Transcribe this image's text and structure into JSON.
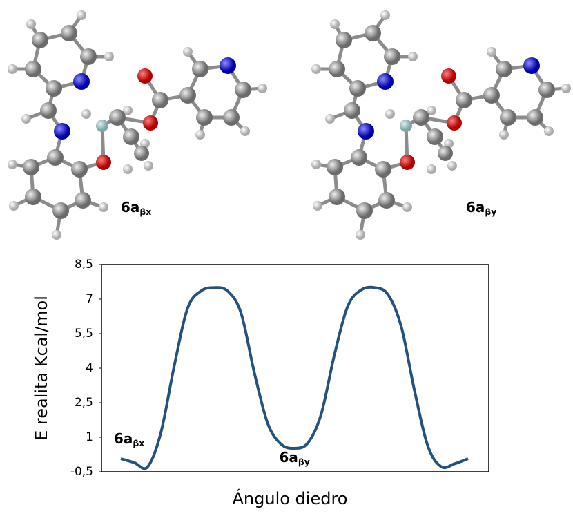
{
  "molecule_labels": [
    {
      "text": "6a",
      "sub": "βx"
    },
    {
      "text": "6a",
      "sub": "βy"
    }
  ],
  "chart_data": {
    "type": "line",
    "x_label": "Ángulo diedro",
    "y_label": "E realita Kcal/mol",
    "categories": [
      null,
      null,
      null,
      null,
      null,
      null,
      null,
      null,
      null,
      null,
      null,
      null,
      null,
      null,
      null,
      null,
      null,
      null,
      null,
      null,
      null,
      null,
      null,
      null,
      null,
      null,
      null
    ],
    "series": [
      {
        "color": "#24527e",
        "values": [
          0.07,
          -0.1,
          -0.29,
          1.2,
          4.1,
          6.6,
          7.35,
          7.5,
          7.35,
          6.4,
          3.8,
          1.6,
          0.7,
          0.52,
          0.75,
          2.0,
          4.6,
          6.7,
          7.4,
          7.5,
          7.2,
          5.8,
          3.0,
          0.6,
          -0.28,
          -0.15,
          0.07
        ]
      }
    ],
    "ylim": [
      -0.5,
      8.5
    ],
    "yticks": [
      {
        "value": -0.5,
        "label": "-0,5"
      },
      1,
      {
        "value": 2.5,
        "label": "2,5"
      },
      4,
      {
        "value": 5.5,
        "label": "5,5"
      },
      7,
      {
        "value": 8.5,
        "label": "8,5"
      }
    ],
    "annotations": [
      {
        "text": "6a",
        "sub": "βx",
        "index": 0
      },
      {
        "text": "6a",
        "sub": "βy",
        "index": 13
      }
    ]
  }
}
